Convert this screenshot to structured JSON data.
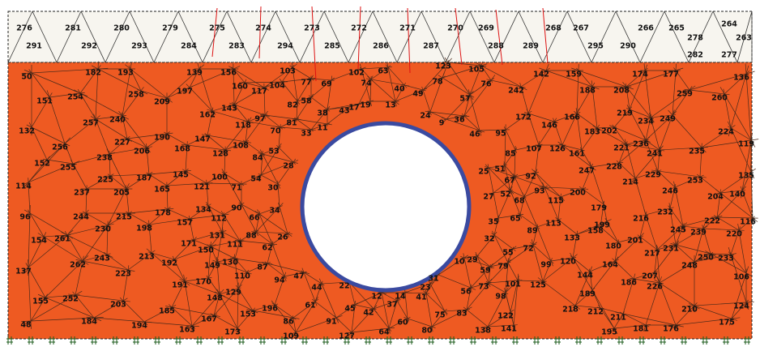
{
  "top_elements": [
    276,
    291,
    281,
    292,
    280,
    293,
    279,
    284,
    275,
    283,
    274,
    294,
    273,
    285,
    272,
    286,
    271,
    287,
    270,
    269,
    288,
    289,
    268,
    267,
    295,
    290,
    266,
    265,
    278,
    264,
    263,
    282,
    277
  ],
  "elements": [
    50,
    182,
    193,
    139,
    156,
    103,
    63,
    123,
    105,
    142,
    159,
    174,
    177,
    136,
    151,
    254,
    258,
    197,
    160,
    117,
    104,
    77,
    69,
    102,
    74,
    40,
    49,
    78,
    76,
    57,
    242,
    188,
    208,
    259,
    260,
    209,
    143,
    82,
    58,
    38,
    43,
    17,
    19,
    13,
    162,
    97,
    118,
    257,
    240,
    172,
    166,
    219,
    234,
    249,
    146,
    132,
    81,
    70,
    33,
    11,
    36,
    9,
    24,
    46,
    95,
    183,
    202,
    224,
    256,
    227,
    190,
    147,
    108,
    206,
    238,
    168,
    128,
    84,
    53,
    152,
    255,
    225,
    187,
    145,
    100,
    54,
    28,
    85,
    107,
    126,
    161,
    221,
    236,
    241,
    235,
    119,
    25,
    51,
    67,
    92,
    247,
    228,
    229,
    135,
    114,
    237,
    205,
    165,
    121,
    71,
    30,
    93,
    52,
    27,
    68,
    115,
    200,
    214,
    246,
    253,
    204,
    140,
    96,
    244,
    215,
    178,
    157,
    134,
    90,
    112,
    66,
    34,
    230,
    198,
    35,
    65,
    113,
    179,
    199,
    216,
    232,
    222,
    116,
    245,
    239,
    220,
    154,
    261,
    131,
    88,
    26,
    62,
    171,
    150,
    111,
    89,
    32,
    133,
    158,
    201,
    180,
    217,
    231,
    55,
    72,
    243,
    213,
    192,
    149,
    130,
    87,
    262,
    223,
    137,
    110,
    10,
    29,
    59,
    79,
    99,
    120,
    164,
    248,
    250,
    233,
    106,
    94,
    47,
    44,
    170,
    191,
    129,
    148,
    22,
    12,
    14,
    41,
    31,
    23,
    56,
    73,
    101,
    125,
    98,
    144,
    186,
    207,
    226,
    189,
    155,
    252,
    203,
    61,
    37,
    45,
    42,
    196,
    153,
    185,
    218,
    212,
    210,
    124,
    83,
    75,
    122,
    167,
    48,
    184,
    194,
    163,
    173,
    86,
    91,
    60,
    80,
    64,
    109,
    127,
    138,
    141,
    195,
    181,
    176,
    175,
    211
  ]
}
